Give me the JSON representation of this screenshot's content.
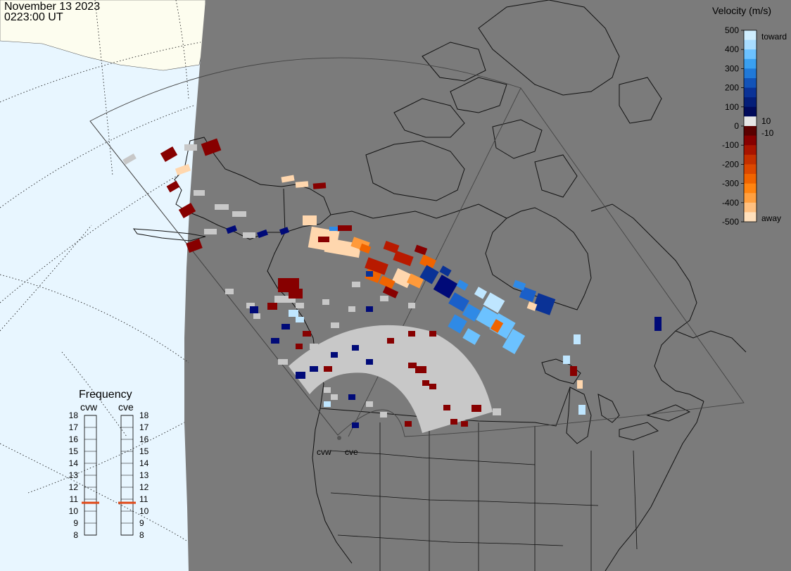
{
  "header": {
    "date": "November 13 2023",
    "time": "0223:00 UT"
  },
  "velocity_scale": {
    "title": "Velocity (m/s)",
    "ticks": [
      "500",
      "400",
      "300",
      "200",
      "100",
      "0",
      "-100",
      "-200",
      "-300",
      "-400",
      "-500"
    ],
    "small_ticks": [
      "10",
      "-10"
    ],
    "toward_label": "toward",
    "away_label": "away",
    "colors_top_to_bottom": [
      "#cfeeff",
      "#a8dcff",
      "#6cc2ff",
      "#3aa0f0",
      "#2079d8",
      "#1253b8",
      "#0a3296",
      "#041e78",
      "#000a5a",
      "#e6e6e6",
      "#5a0000",
      "#870000",
      "#a81400",
      "#c43000",
      "#dc4800",
      "#f06400",
      "#ff8410",
      "#ffa040",
      "#ffc080",
      "#ffe0bc"
    ]
  },
  "frequency_panel": {
    "title": "Frequency",
    "columns": [
      "cvw",
      "cve"
    ],
    "ticks": [
      "18",
      "17",
      "16",
      "15",
      "14",
      "13",
      "12",
      "11",
      "10",
      "9",
      "8"
    ],
    "cvw_mhz": 10.7,
    "cve_mhz": 10.7
  },
  "radar_sites": [
    "cvw",
    "cve"
  ],
  "colors": {
    "night": "#7b7b7b",
    "ocean_day": "#e8f6ff",
    "land_day": "#fdfdef",
    "ground_scatter": "#c8c8c8",
    "frequency_marker": "#e04a1a"
  }
}
